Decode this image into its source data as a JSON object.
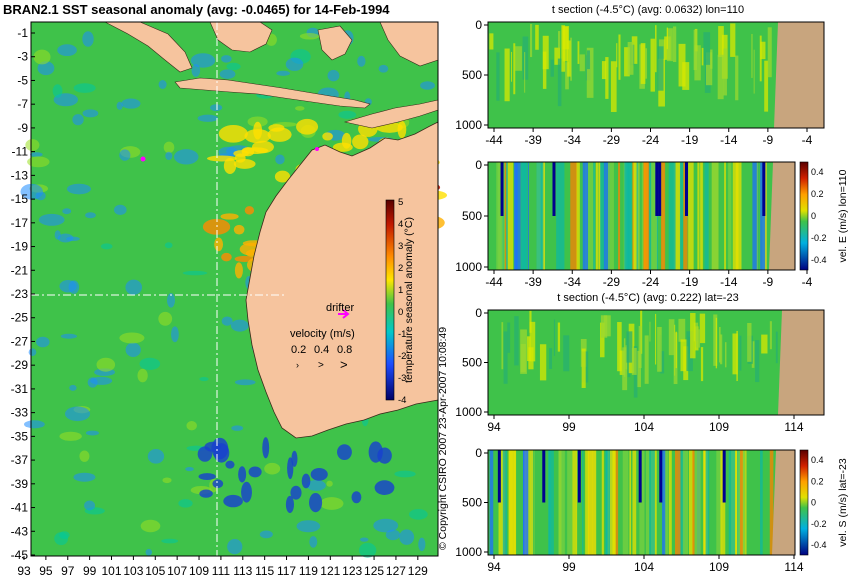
{
  "map": {
    "title": "BRAN2.1 SST seasonal anomaly (avg: -0.0465) for 14-Feb-1994",
    "y_ticks": [
      "-1",
      "-3",
      "-5",
      "-7",
      "-9",
      "-11",
      "-13",
      "-15",
      "-17",
      "-19",
      "-21",
      "-23",
      "-25",
      "-27",
      "-29",
      "-31",
      "-33",
      "-35",
      "-37",
      "-39",
      "-41",
      "-43",
      "-45"
    ],
    "x_ticks": [
      "93",
      "95",
      "97",
      "99",
      "101",
      "103",
      "105",
      "107",
      "109",
      "111",
      "113",
      "115",
      "117",
      "119",
      "121",
      "123",
      "125",
      "127",
      "129"
    ],
    "drifter_label": "drifter",
    "velocity_label": "velocity (m/s)",
    "velocity_scale": [
      "0.2",
      "0.4",
      "0.8"
    ],
    "colorbar_ticks": [
      "5",
      "4",
      "3",
      "2",
      "1",
      "0",
      "-1",
      "-2",
      "-3",
      "-4"
    ],
    "colorbar_label": "temperature seasonal anomaly (°C)",
    "section_lon": 110,
    "section_lat": -23,
    "copyright": "© Copyright CSIRO 2007   23-Apr-2007 10:08:49"
  },
  "panels": {
    "p1": {
      "title": "t section (-4.5°C) (avg: 0.0632) lon=110",
      "x_ticks": [
        "-44",
        "-39",
        "-34",
        "-29",
        "-24",
        "-19",
        "-14",
        "-9",
        "-4"
      ],
      "y_ticks": [
        "0",
        "500",
        "1000"
      ]
    },
    "p2": {
      "title": "",
      "x_ticks": [
        "-44",
        "-39",
        "-34",
        "-29",
        "-24",
        "-19",
        "-14",
        "-9",
        "-4"
      ],
      "y_ticks": [
        "0",
        "500",
        "1000"
      ],
      "cbar_label": "vel. E (m/s) lon=110",
      "cbar_ticks": [
        "0.4",
        "0.2",
        "0",
        "-0.2",
        "-0.4"
      ]
    },
    "p3": {
      "title": "t section (-4.5°C) (avg: 0.222) lat=-23",
      "x_ticks": [
        "94",
        "99",
        "104",
        "109",
        "114"
      ],
      "y_ticks": [
        "0",
        "500",
        "1000"
      ]
    },
    "p4": {
      "title": "",
      "x_ticks": [
        "94",
        "99",
        "104",
        "109",
        "114"
      ],
      "y_ticks": [
        "0",
        "500",
        "1000"
      ],
      "cbar_label": "vel. S (m/s) lat=-23",
      "cbar_ticks": [
        "0.4",
        "0.2",
        "0",
        "-0.2",
        "-0.4"
      ]
    }
  },
  "colors": {
    "land": "#f6c49e",
    "seabed": "#c8a57e",
    "ocean": "#3fc24a",
    "neg": "#1e6fff",
    "pos": "#ffd400",
    "hot": "#c01800"
  }
}
